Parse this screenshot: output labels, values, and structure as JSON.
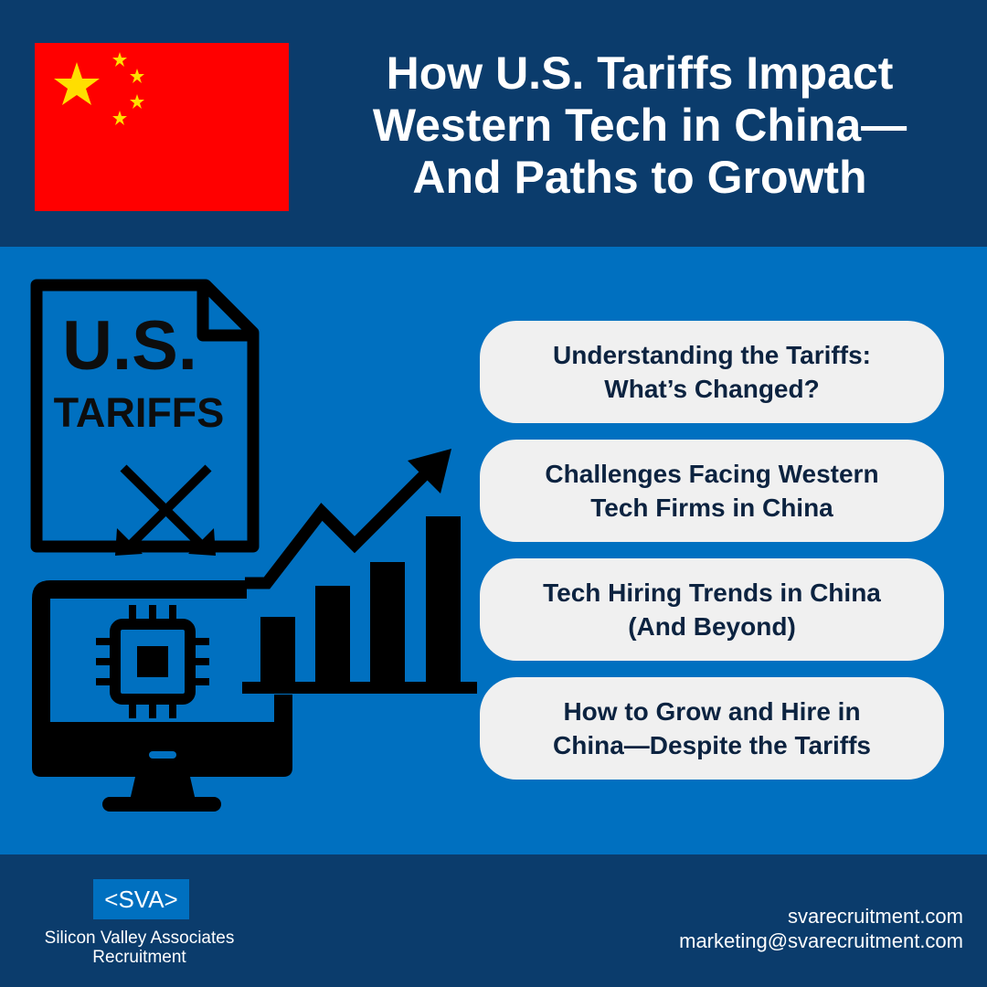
{
  "header": {
    "title_lines": [
      "How U.S. Tariffs Impact",
      "Western Tech in China—",
      "And Paths to Growth"
    ]
  },
  "illustration": {
    "document_line_1": "U.S.",
    "document_line_2": "TARIFFS"
  },
  "topics": [
    {
      "lines": [
        "Understanding the Tariffs:",
        "What’s Changed?"
      ]
    },
    {
      "lines": [
        "Challenges Facing Western",
        "Tech Firms in China"
      ]
    },
    {
      "lines": [
        "Tech Hiring Trends in China",
        "(And Beyond)"
      ]
    },
    {
      "lines": [
        "How to Grow and Hire in",
        "China—Despite the Tariffs"
      ]
    }
  ],
  "footer": {
    "logo": "<SVA>",
    "company_lines": [
      "Silicon Valley Associates",
      "Recruitment"
    ],
    "website": "svarecruitment.com",
    "email": "marketing@svarecruitment.com"
  }
}
